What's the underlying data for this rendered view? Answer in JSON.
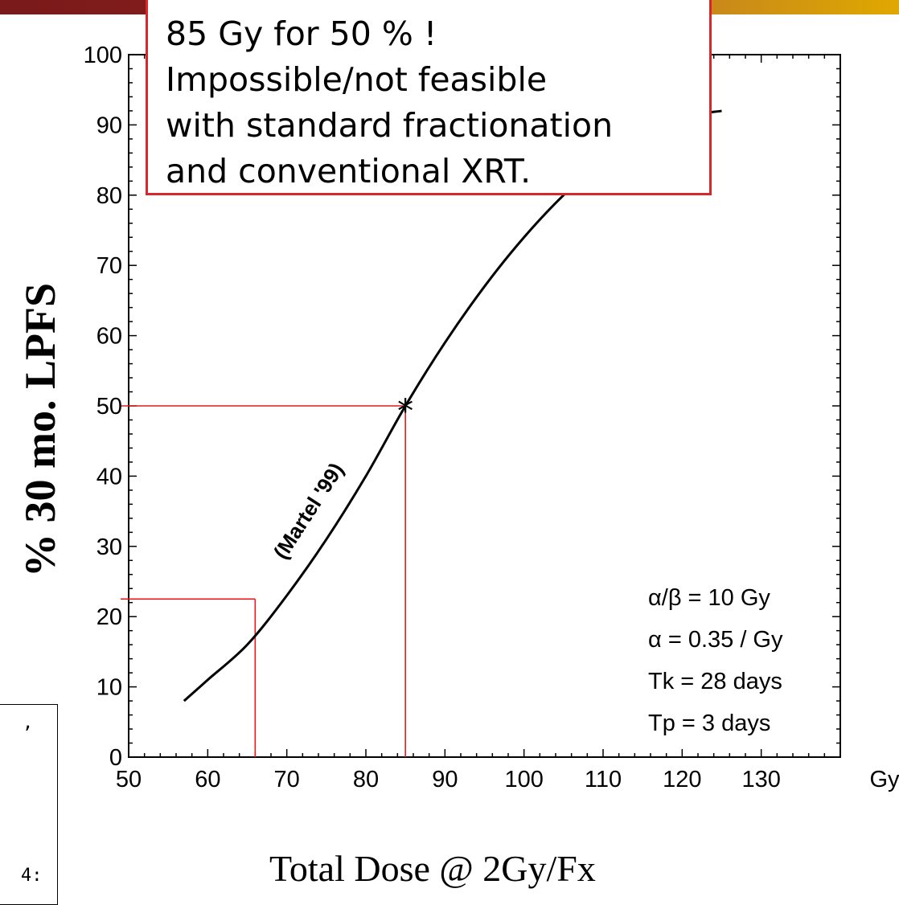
{
  "chart_data": {
    "type": "line",
    "x": [
      57,
      60,
      65,
      70,
      75,
      80,
      85,
      90,
      95,
      100,
      105,
      110,
      115,
      120,
      125
    ],
    "series": [
      {
        "values": [
          8,
          11,
          16,
          23,
          31,
          40,
          50,
          59,
          67,
          74,
          80,
          85,
          88,
          91,
          92
        ],
        "color": "#000000"
      }
    ],
    "xlabel": "Total Dose @ 2Gy/Fx",
    "ylabel": "% 30 mo. LPFS",
    "x_unit": "Gy",
    "xlim": [
      50,
      140
    ],
    "ylim": [
      0,
      100
    ],
    "xticks": [
      "50",
      "60",
      "70",
      "80",
      "90",
      "100",
      "110",
      "120",
      "130"
    ],
    "yticks": [
      "0",
      "10",
      "20",
      "30",
      "40",
      "50",
      "60",
      "70",
      "80",
      "90",
      "100"
    ],
    "curve_label": "(Martel '99)",
    "annotations": [
      {
        "label": "*",
        "x": 85,
        "y": 50
      }
    ],
    "reference_lines": [
      {
        "x": 85,
        "y": 50,
        "color": "#e31a1c"
      },
      {
        "x": 66,
        "y": 22.5,
        "color": "#e31a1c"
      }
    ],
    "parameters": [
      "α/β = 10 Gy",
      "α = 0.35 / Gy",
      "Tk = 28 days",
      "Tp = 3 days"
    ],
    "callout": [
      "85 Gy for 50 % !",
      "Impossible/not feasible",
      "with standard fractionation",
      "and conventional XRT."
    ]
  },
  "side_text": [
    ",",
    "4:"
  ],
  "colors": {
    "accent_red": "#e31a1c",
    "callout_border": "#d9262c"
  }
}
